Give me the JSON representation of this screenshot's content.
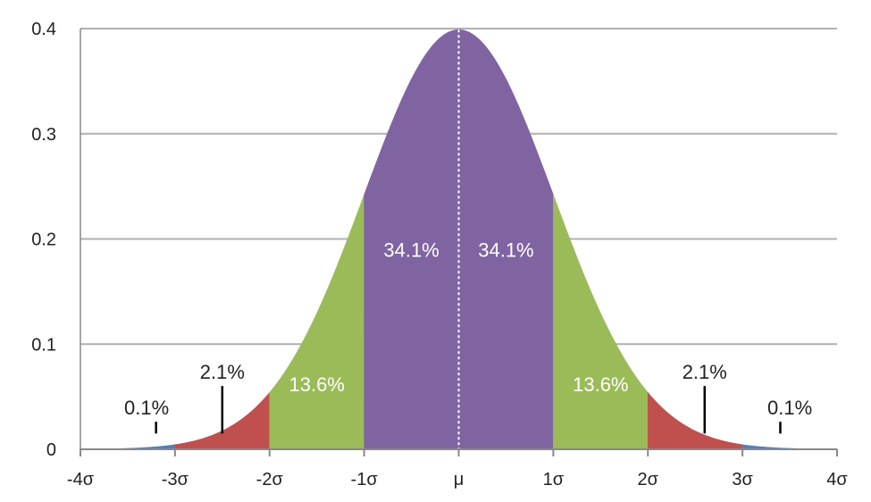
{
  "chart_data": {
    "type": "area",
    "title": "",
    "xlabel": "",
    "ylabel": "",
    "xlim": [
      -4,
      4
    ],
    "ylim": [
      0,
      0.4
    ],
    "grid": true,
    "x_ticks": [
      {
        "value": -4,
        "label": "-4σ"
      },
      {
        "value": -3,
        "label": "-3σ"
      },
      {
        "value": -2,
        "label": "-2σ"
      },
      {
        "value": -1,
        "label": "-1σ"
      },
      {
        "value": 0,
        "label": "μ"
      },
      {
        "value": 1,
        "label": "1σ"
      },
      {
        "value": 2,
        "label": "2σ"
      },
      {
        "value": 3,
        "label": "3σ"
      },
      {
        "value": 4,
        "label": "4σ"
      }
    ],
    "y_ticks": [
      {
        "value": 0,
        "label": "0"
      },
      {
        "value": 0.1,
        "label": "0.1"
      },
      {
        "value": 0.2,
        "label": "0.2"
      },
      {
        "value": 0.3,
        "label": "0.3"
      },
      {
        "value": 0.4,
        "label": "0.4"
      }
    ],
    "curve": "standard normal density",
    "mean_line": {
      "x": 0,
      "style": "dotted",
      "color": "#ffffff"
    },
    "bands": [
      {
        "from": -4,
        "to": -3,
        "color": "#4f81bd",
        "label": "0.1%",
        "label_x": -3.3,
        "label_y": 0.033,
        "pointer": true,
        "pointer_x": -3.2,
        "label_color": "#222222"
      },
      {
        "from": -3,
        "to": -2,
        "color": "#c0504d",
        "label": "2.1%",
        "label_x": -2.5,
        "label_y": 0.067,
        "pointer": true,
        "pointer_x": -2.5,
        "label_color": "#222222"
      },
      {
        "from": -2,
        "to": -1,
        "color": "#9bbb59",
        "label": "13.6%",
        "label_x": -1.5,
        "label_y": 0.055,
        "pointer": false,
        "label_color": "#ffffff"
      },
      {
        "from": -1,
        "to": 0,
        "color": "#8064a2",
        "label": "34.1%",
        "label_x": -0.5,
        "label_y": 0.183,
        "pointer": false,
        "label_color": "#ffffff"
      },
      {
        "from": 0,
        "to": 1,
        "color": "#8064a2",
        "label": "34.1%",
        "label_x": 0.5,
        "label_y": 0.183,
        "pointer": false,
        "label_color": "#ffffff"
      },
      {
        "from": 1,
        "to": 2,
        "color": "#9bbb59",
        "label": "13.6%",
        "label_x": 1.5,
        "label_y": 0.055,
        "pointer": false,
        "label_color": "#ffffff"
      },
      {
        "from": 2,
        "to": 3,
        "color": "#c0504d",
        "label": "2.1%",
        "label_x": 2.6,
        "label_y": 0.067,
        "pointer": true,
        "pointer_x": 2.6,
        "label_color": "#222222"
      },
      {
        "from": 3,
        "to": 4,
        "color": "#4f81bd",
        "label": "0.1%",
        "label_x": 3.5,
        "label_y": 0.033,
        "pointer": true,
        "pointer_x": 3.4,
        "label_color": "#222222"
      }
    ],
    "grid_color": "#b0b0b0",
    "axis_color": "#888888"
  }
}
